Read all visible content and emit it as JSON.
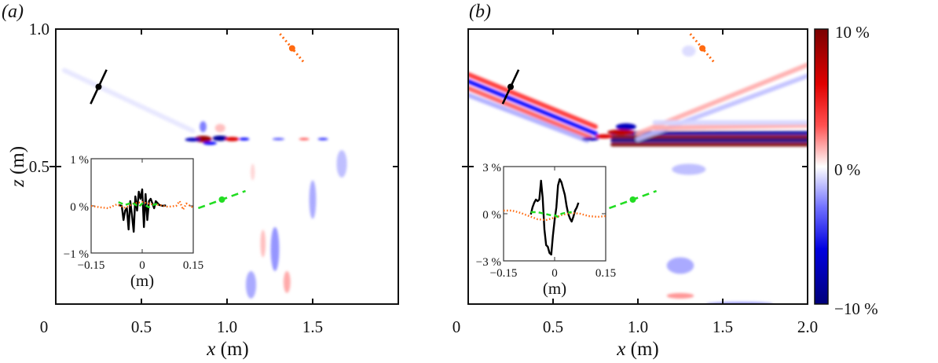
{
  "chart_data": [
    {
      "panel_label": "(a)",
      "type": "heatmap",
      "xlabel_var": "x",
      "xlabel_unit": " (m)",
      "ylabel_var": "z",
      "ylabel_unit": " (m)",
      "xlim": [
        0,
        2.0
      ],
      "ylim": [
        0,
        1.0
      ],
      "xticks": [
        "0",
        "0.5",
        "1.0",
        "1.5"
      ],
      "xtick_values": [
        0,
        0.5,
        1.0,
        1.5
      ],
      "yticks": [
        "1.0",
        "0.5"
      ],
      "ytick_values": [
        1.0,
        0.5
      ],
      "colormap": "blue-white-red",
      "blobs": [
        {
          "x": 0.86,
          "z": 0.6,
          "rx": 0.05,
          "rz": 0.012,
          "v": 9
        },
        {
          "x": 0.96,
          "z": 0.603,
          "rx": 0.045,
          "rz": 0.01,
          "v": -9
        },
        {
          "x": 1.03,
          "z": 0.6,
          "rx": 0.04,
          "rz": 0.008,
          "v": 7
        },
        {
          "x": 0.8,
          "z": 0.598,
          "rx": 0.045,
          "rz": 0.007,
          "v": -8
        },
        {
          "x": 0.9,
          "z": 0.585,
          "rx": 0.04,
          "rz": 0.006,
          "v": -6
        },
        {
          "x": 1.1,
          "z": 0.6,
          "rx": 0.03,
          "rz": 0.005,
          "v": -6
        },
        {
          "x": 1.3,
          "z": 0.6,
          "rx": 0.035,
          "rz": 0.004,
          "v": -4
        },
        {
          "x": 1.45,
          "z": 0.6,
          "rx": 0.03,
          "rz": 0.004,
          "v": 4
        },
        {
          "x": 1.56,
          "z": 0.6,
          "rx": 0.03,
          "rz": 0.004,
          "v": -5
        },
        {
          "x": 0.86,
          "z": 0.645,
          "rx": 0.02,
          "rz": 0.02,
          "v": -3
        },
        {
          "x": 0.96,
          "z": 0.64,
          "rx": 0.03,
          "rz": 0.015,
          "v": 1.5
        },
        {
          "x": 1.28,
          "z": 0.2,
          "rx": 0.025,
          "rz": 0.08,
          "v": -2.5
        },
        {
          "x": 1.14,
          "z": 0.07,
          "rx": 0.03,
          "rz": 0.05,
          "v": -2
        },
        {
          "x": 1.5,
          "z": 0.38,
          "rx": 0.02,
          "rz": 0.07,
          "v": -2
        },
        {
          "x": 1.21,
          "z": 0.22,
          "rx": 0.015,
          "rz": 0.05,
          "v": 1.5
        },
        {
          "x": 1.35,
          "z": 0.08,
          "rx": 0.02,
          "rz": 0.04,
          "v": 2
        },
        {
          "x": 1.67,
          "z": 0.51,
          "rx": 0.03,
          "rz": 0.05,
          "v": -1.5
        },
        {
          "x": 1.15,
          "z": 0.48,
          "rx": 0.012,
          "rz": 0.03,
          "v": 1
        }
      ],
      "bands": [
        {
          "x": [
            0.05,
            0.8
          ],
          "z": [
            0.85,
            0.63
          ],
          "v": -0.6
        }
      ],
      "markers": [
        {
          "name": "black",
          "color": "#000000",
          "style": "solid",
          "x": 0.25,
          "z": 0.79,
          "angle_deg": 65
        },
        {
          "name": "orange",
          "color": "#ff6a10",
          "style": "dotted",
          "x": 1.38,
          "z": 0.93,
          "angle_deg": -50
        },
        {
          "name": "green",
          "color": "#22dd22",
          "style": "dashed",
          "x": 0.97,
          "z": 0.38,
          "angle_deg": 20
        }
      ],
      "inset": {
        "xlim": [
          -0.15,
          0.15
        ],
        "ylim": [
          -1,
          1
        ],
        "xticks": [
          "−0.15",
          "0",
          "0.15"
        ],
        "xtick_values": [
          -0.15,
          0,
          0.15
        ],
        "yticks": [
          "1 %",
          "0 %",
          "−1 %"
        ],
        "ytick_values": [
          1,
          0,
          -1
        ],
        "xlabel": "(m)",
        "series": [
          {
            "color": "#000000",
            "style": "solid",
            "x": [
              -0.07,
              -0.06,
              -0.055,
              -0.05,
              -0.045,
              -0.04,
              -0.035,
              -0.03,
              -0.025,
              -0.02,
              -0.015,
              -0.01,
              -0.005,
              0,
              0.005,
              0.01,
              0.015,
              0.02,
              0.025,
              0.03,
              0.035,
              0.04,
              0.05,
              0.06,
              0.07
            ],
            "y": [
              0.02,
              0.0,
              -0.3,
              -0.1,
              -0.05,
              -0.5,
              0.1,
              -0.2,
              -0.55,
              0.2,
              -0.1,
              0.3,
              0.15,
              0.35,
              -0.45,
              0.25,
              -0.3,
              0.1,
              0.15,
              0.05,
              -0.05,
              0.1,
              0.02,
              0.0,
              0.01
            ]
          },
          {
            "color": "#ff6a10",
            "style": "dotted",
            "x": [
              -0.15,
              -0.125,
              -0.1,
              -0.075,
              -0.05,
              -0.025,
              0,
              0.025,
              0.05,
              0.075,
              0.1,
              0.11,
              0.12,
              0.13,
              0.15
            ],
            "y": [
              0.0,
              -0.03,
              -0.05,
              0.03,
              -0.04,
              0.05,
              0.08,
              0.04,
              0.02,
              -0.02,
              0.0,
              0.1,
              -0.08,
              0.05,
              -0.04
            ]
          },
          {
            "color": "#22dd22",
            "style": "dashed",
            "x": [
              -0.07,
              -0.05,
              -0.03,
              -0.01,
              0.0,
              0.02,
              0.04,
              0.05
            ],
            "y": [
              0.08,
              0.02,
              0.07,
              -0.02,
              0.05,
              -0.03,
              0.04,
              0.0
            ]
          }
        ]
      }
    },
    {
      "panel_label": "(b)",
      "type": "heatmap",
      "xlabel_var": "x",
      "xlabel_unit": " (m)",
      "xlim": [
        0,
        2.0
      ],
      "ylim": [
        0,
        1.0
      ],
      "xticks": [
        "0",
        "0.5",
        "1.0",
        "1.5",
        "2.0"
      ],
      "xtick_values": [
        0,
        0.5,
        1.0,
        1.5,
        2.0
      ],
      "colormap": "blue-white-red",
      "colorbar": {
        "ticks": [
          "10 %",
          "0 %",
          "−10 %"
        ],
        "tick_values": [
          10,
          0,
          -10
        ],
        "range": [
          -10,
          10
        ]
      },
      "blobs": [
        {
          "x": 0.93,
          "z": 0.645,
          "rx": 0.06,
          "rz": 0.012,
          "v": -8
        },
        {
          "x": 0.9,
          "z": 0.625,
          "rx": 0.08,
          "rz": 0.01,
          "v": 8
        },
        {
          "x": 0.72,
          "z": 0.6,
          "rx": 0.05,
          "rz": 0.006,
          "v": -8
        },
        {
          "x": 0.8,
          "z": 0.61,
          "rx": 0.05,
          "rz": 0.008,
          "v": 7
        },
        {
          "x": 1.3,
          "z": 0.49,
          "rx": 0.1,
          "rz": 0.02,
          "v": -1.5
        },
        {
          "x": 1.25,
          "z": 0.14,
          "rx": 0.08,
          "rz": 0.03,
          "v": -2
        },
        {
          "x": 1.25,
          "z": 0.03,
          "rx": 0.08,
          "rz": 0.01,
          "v": 2.5
        },
        {
          "x": 1.6,
          "z": 0.0,
          "rx": 0.2,
          "rz": 0.008,
          "v": -2.5
        },
        {
          "x": 1.3,
          "z": 0.92,
          "rx": 0.04,
          "rz": 0.02,
          "v": -0.8
        }
      ],
      "bands": [
        {
          "x": [
            0.0,
            0.75
          ],
          "z": [
            0.835,
            0.645
          ],
          "v": 5
        },
        {
          "x": [
            0.0,
            0.75
          ],
          "z": [
            0.81,
            0.62
          ],
          "v": -6
        },
        {
          "x": [
            0.0,
            0.72
          ],
          "z": [
            0.785,
            0.605
          ],
          "v": 4
        },
        {
          "x": [
            0.0,
            0.7
          ],
          "z": [
            0.76,
            0.595
          ],
          "v": -2
        },
        {
          "x": [
            0.85,
            2.0
          ],
          "z": [
            0.622,
            0.622
          ],
          "v": -9
        },
        {
          "x": [
            0.85,
            2.0
          ],
          "z": [
            0.607,
            0.607
          ],
          "v": 10
        },
        {
          "x": [
            0.85,
            2.0
          ],
          "z": [
            0.595,
            0.595
          ],
          "v": -10
        },
        {
          "x": [
            0.85,
            2.0
          ],
          "z": [
            0.58,
            0.58
          ],
          "v": 10
        },
        {
          "x": [
            1.0,
            2.0
          ],
          "z": [
            0.62,
            0.87
          ],
          "v": 2
        },
        {
          "x": [
            1.0,
            2.0
          ],
          "z": [
            0.6,
            0.83
          ],
          "v": -1.5
        },
        {
          "x": [
            1.1,
            2.0
          ],
          "z": [
            0.64,
            0.65
          ],
          "v": 2
        },
        {
          "x": [
            1.1,
            2.0
          ],
          "z": [
            0.66,
            0.66
          ],
          "v": -1
        }
      ],
      "markers": [
        {
          "name": "black",
          "color": "#000000",
          "style": "solid",
          "x": 0.25,
          "z": 0.79,
          "angle_deg": 65
        },
        {
          "name": "orange",
          "color": "#ff6a10",
          "style": "dotted",
          "x": 1.38,
          "z": 0.93,
          "angle_deg": -50
        },
        {
          "name": "green",
          "color": "#22dd22",
          "style": "dashed",
          "x": 0.97,
          "z": 0.38,
          "angle_deg": 20
        }
      ],
      "inset": {
        "xlim": [
          -0.15,
          0.15
        ],
        "ylim": [
          -3,
          3
        ],
        "xticks": [
          "−0.15",
          "0",
          "0.15"
        ],
        "xtick_values": [
          -0.15,
          0,
          0.15
        ],
        "yticks": [
          "3 %",
          "0 %",
          "−3 %"
        ],
        "ytick_values": [
          3,
          0,
          -3
        ],
        "xlabel": "(m)",
        "series": [
          {
            "color": "#000000",
            "style": "solid",
            "x": [
              -0.07,
              -0.065,
              -0.06,
              -0.055,
              -0.05,
              -0.045,
              -0.04,
              -0.035,
              -0.03,
              -0.025,
              -0.02,
              -0.015,
              -0.01,
              -0.005,
              0,
              0.005,
              0.01,
              0.015,
              0.02,
              0.025,
              0.03,
              0.035,
              0.04,
              0.045,
              0.05,
              0.055,
              0.06,
              0.065,
              0.07
            ],
            "y": [
              -0.05,
              0.4,
              0.7,
              0.9,
              0.8,
              0.9,
              2.1,
              1.0,
              -1.0,
              -2.0,
              -2.1,
              -2.5,
              -2.6,
              -1.4,
              -0.4,
              0.4,
              1.8,
              2.2,
              2.0,
              1.6,
              1.2,
              0.5,
              0.0,
              -0.3,
              -0.5,
              -0.2,
              0.2,
              0.4,
              0.7
            ]
          },
          {
            "color": "#ff6a10",
            "style": "dotted",
            "x": [
              -0.15,
              -0.125,
              -0.1,
              -0.075,
              -0.05,
              -0.025,
              0,
              0.025,
              0.05,
              0.075,
              0.1,
              0.125,
              0.15
            ],
            "y": [
              0.2,
              0.2,
              0.05,
              -0.15,
              -0.35,
              -0.4,
              -0.25,
              -0.05,
              0.05,
              0.0,
              -0.15,
              -0.2,
              -0.15
            ]
          },
          {
            "color": "#22dd22",
            "style": "dashed",
            "x": [
              -0.07,
              -0.05,
              -0.03,
              -0.01,
              0.0,
              0.01,
              0.02,
              0.03,
              0.05
            ],
            "y": [
              0.1,
              0.1,
              0.0,
              -0.1,
              -0.1,
              -0.2,
              0.0,
              0.05,
              0.1
            ]
          }
        ]
      }
    }
  ]
}
